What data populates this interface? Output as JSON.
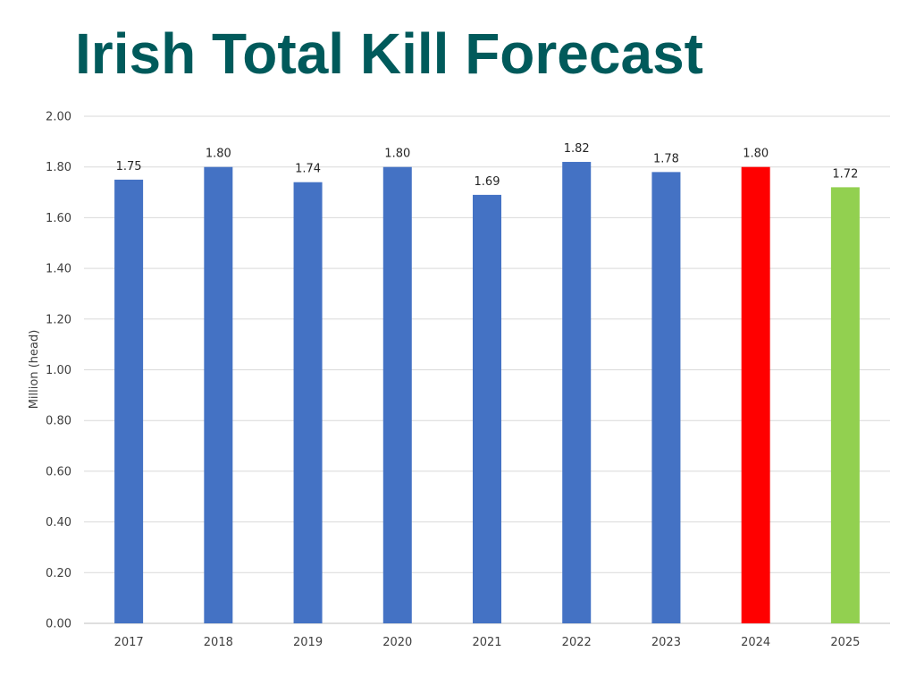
{
  "title": "Irish Total Kill Forecast",
  "chart_data": {
    "type": "bar",
    "title": "Irish Total Kill Forecast",
    "xlabel": "",
    "ylabel": "Million (head)",
    "categories": [
      "2017",
      "2018",
      "2019",
      "2020",
      "2021",
      "2022",
      "2023",
      "2024",
      "2025"
    ],
    "values": [
      1.75,
      1.8,
      1.74,
      1.8,
      1.69,
      1.82,
      1.78,
      1.8,
      1.72
    ],
    "data_labels": [
      "1.75",
      "1.80",
      "1.74",
      "1.80",
      "1.69",
      "1.82",
      "1.78",
      "1.80",
      "1.72"
    ],
    "bar_colors": [
      "#4472c4",
      "#4472c4",
      "#4472c4",
      "#4472c4",
      "#4472c4",
      "#4472c4",
      "#4472c4",
      "#ff0000",
      "#92d050"
    ],
    "ylim": [
      0,
      2.0
    ],
    "yticks": [
      "0.00",
      "0.20",
      "0.40",
      "0.60",
      "0.80",
      "1.00",
      "1.20",
      "1.40",
      "1.60",
      "1.80",
      "2.00"
    ],
    "grid": true,
    "legend": "none"
  }
}
